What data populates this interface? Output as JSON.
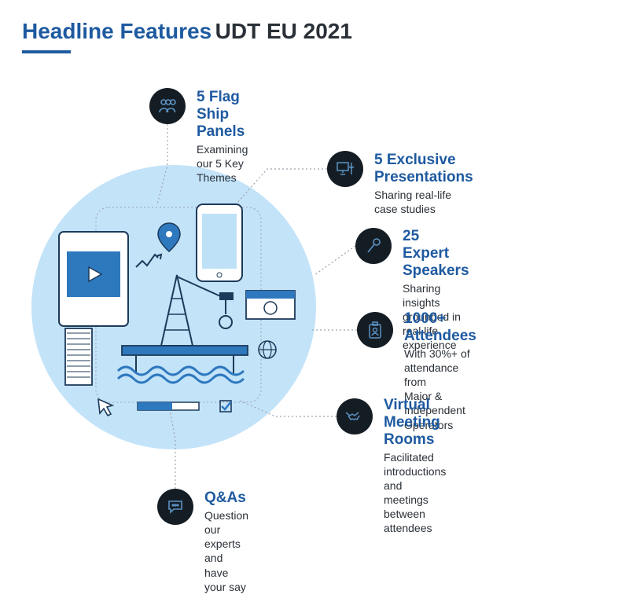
{
  "header": {
    "title_blue": "Headline Features",
    "title_dark": "UDT EU 2021",
    "blue_color": "#1e5aa0",
    "dark_color": "#2a3037",
    "underline_color": "#1e5aa0"
  },
  "bg_circle_color": "#c3e3f9",
  "icon_bg_color": "#151d24",
  "icon_stroke_color": "#5b93c4",
  "title_color": "#1e5aa0",
  "desc_color": "#2a3037",
  "connector_color": "#9aa5af",
  "features": [
    {
      "title": "5 Flag Ship Panels",
      "desc": "Examining our 5 Key Themes"
    },
    {
      "title": "5 Exclusive Presentations",
      "desc": "Sharing real-life case studies"
    },
    {
      "title": "25 Expert Speakers",
      "desc": "Sharing insights grounded in\nreal life experience"
    },
    {
      "title": "1000+ Attendees",
      "desc": "With 30%+ of attendance from\nMajor & Independent Operators"
    },
    {
      "title": "Virtual Meeting Rooms",
      "desc": "Facilitated introductions and meetings\nbetween attendees"
    },
    {
      "title": "Q&As",
      "desc": "Question our experts and have your say"
    }
  ],
  "illustration": {
    "stroke": "#1d3a5a",
    "blue_fill": "#2e78be",
    "light_fill": "#bfe1f7",
    "white_fill": "#ffffff"
  }
}
